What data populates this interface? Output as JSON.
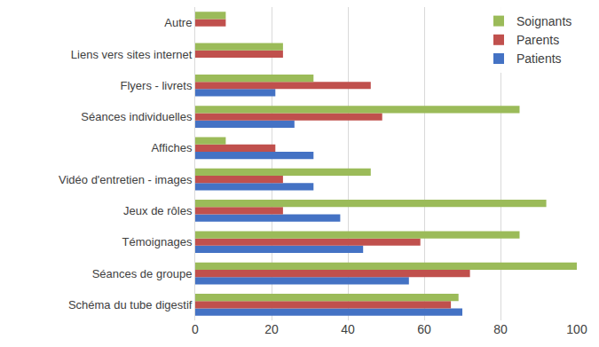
{
  "chart_data": {
    "type": "bar",
    "orientation": "horizontal",
    "categories": [
      "Schéma du tube digestif",
      "Séances de groupe",
      "Témoignages",
      "Jeux de rôles",
      "Vidéo d'entretien - images",
      "Affiches",
      "Séances individuelles",
      "Flyers - livrets",
      "Liens vers sites internet",
      "Autre"
    ],
    "series": [
      {
        "name": "Patients",
        "color": "#4472c4",
        "values": [
          70,
          56,
          44,
          38,
          31,
          31,
          26,
          21,
          0,
          0
        ]
      },
      {
        "name": "Parents",
        "color": "#c0504d",
        "values": [
          67,
          72,
          59,
          23,
          23,
          21,
          49,
          46,
          23,
          8
        ]
      },
      {
        "name": "Soignants",
        "color": "#9bbb59",
        "values": [
          69,
          100,
          85,
          92,
          46,
          8,
          85,
          31,
          23,
          8
        ]
      }
    ],
    "xlim": [
      0,
      100
    ],
    "xticks": [
      0,
      20,
      40,
      60,
      80,
      100
    ],
    "grid": true,
    "legend": "top right"
  }
}
